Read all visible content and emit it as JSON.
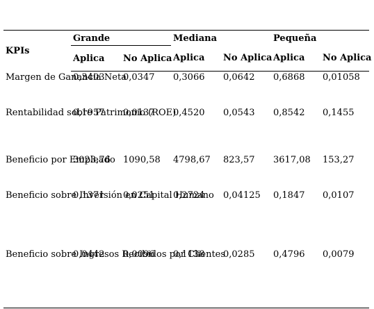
{
  "table": {
    "kpi_header": "KPIs",
    "groups": [
      "Grande",
      "Mediana",
      "Pequeña"
    ],
    "subheaders": [
      "Aplica",
      "No Aplica",
      "Aplica",
      "No Aplica",
      "Aplica",
      "No Aplica"
    ],
    "rows": [
      {
        "kpi": "Margen de Ganancia Neta",
        "values": [
          "0,3403",
          "0,0347",
          "0,3066",
          "0,0642",
          "0,6868",
          "0,01058"
        ]
      },
      {
        "kpi": "Rentabilidad sobre Patrimonio (ROE)",
        "values": [
          "0,1957",
          "0,0137",
          "0,4520",
          "0,0543",
          "0,8542",
          "0,1455"
        ]
      },
      {
        "kpi": "Beneficio por Empleado",
        "values": [
          "3023,76",
          "1090,58",
          "4798,67",
          "823,57",
          "3617,08",
          "153,27"
        ]
      },
      {
        "kpi": "Beneficio sobre Inversión en Capital Humano",
        "values": [
          "0,1371",
          "0,0251",
          "0,2724",
          "0,04125",
          "0,1847",
          "0,0107"
        ]
      },
      {
        "kpi": "Beneficio sobre Ingresos Recibidos por Clientes",
        "values": [
          "0,0442",
          "0,0096",
          "0,1138",
          "0,0285",
          "0,4796",
          "0,0079"
        ]
      }
    ]
  }
}
